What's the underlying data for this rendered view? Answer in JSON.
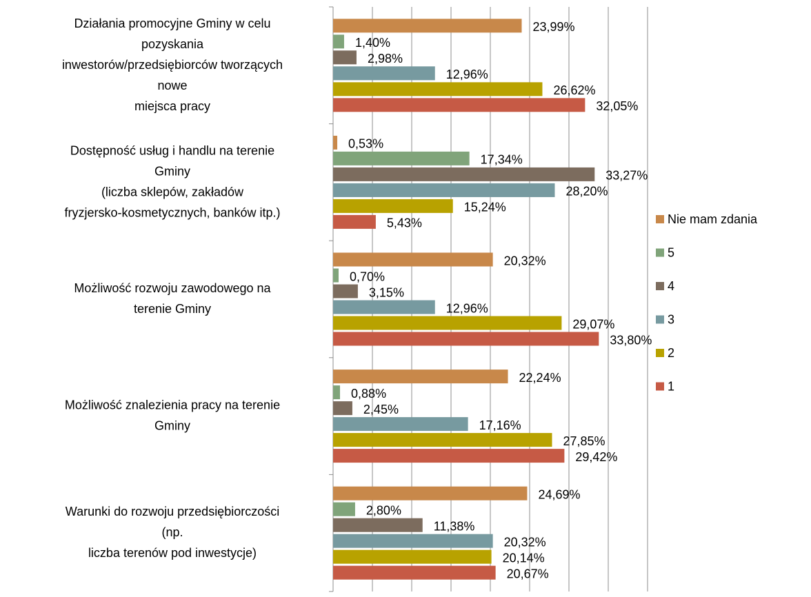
{
  "chart_data": {
    "type": "hbar",
    "categories": [
      "Działania promocyjne Gminy w celu\npozyskania\ninwestorów/przedsiębiorców tworzących\nnowe\nmiejsca pracy",
      "Dostępność usług i handlu na terenie\nGminy\n(liczba sklepów, zakładów\nfryzjersko-kosmetycznych, banków itp.)",
      "Możliwość rozwoju zawodowego na\nterenie Gminy",
      "Możliwość znalezienia pracy na terenie\nGminy",
      "Warunki do rozwoju przedsiębiorczości\n(np.\nliczba terenów pod inwestycje)"
    ],
    "series": [
      {
        "name": "Nie mam zdania",
        "color": "#c8884a",
        "values": [
          23.99,
          0.53,
          20.32,
          22.24,
          24.69
        ],
        "value_labels": [
          "23,99%",
          "0,53%",
          "20,32%",
          "22,24%",
          "24,69%"
        ]
      },
      {
        "name": "5",
        "color": "#80a47a",
        "values": [
          1.4,
          17.34,
          0.7,
          0.88,
          2.8
        ],
        "value_labels": [
          "1,40%",
          "17,34%",
          "0,70%",
          "0,88%",
          "2,80%"
        ]
      },
      {
        "name": "4",
        "color": "#7c6c5e",
        "values": [
          2.98,
          33.27,
          3.15,
          2.45,
          11.38
        ],
        "value_labels": [
          "2,98%",
          "33,27%",
          "3,15%",
          "2,45%",
          "11,38%"
        ]
      },
      {
        "name": "3",
        "color": "#779aa0",
        "values": [
          12.96,
          28.2,
          12.96,
          17.16,
          20.32
        ],
        "value_labels": [
          "12,96%",
          "28,20%",
          "12,96%",
          "17,16%",
          "20,32%"
        ]
      },
      {
        "name": "2",
        "color": "#b8a200",
        "values": [
          26.62,
          15.24,
          29.07,
          27.85,
          20.14
        ],
        "value_labels": [
          "26,62%",
          "15,24%",
          "29,07%",
          "27,85%",
          "20,14%"
        ]
      },
      {
        "name": "1",
        "color": "#c65a45",
        "values": [
          32.05,
          5.43,
          33.8,
          29.42,
          20.67
        ],
        "value_labels": [
          "32,05%",
          "5,43%",
          "33,80%",
          "29,42%",
          "20,67%"
        ]
      }
    ],
    "xlim": [
      0,
      40
    ],
    "xticks": [
      0,
      5,
      10,
      15,
      20,
      25,
      30,
      35,
      40
    ],
    "grid": true,
    "legend": "right"
  }
}
